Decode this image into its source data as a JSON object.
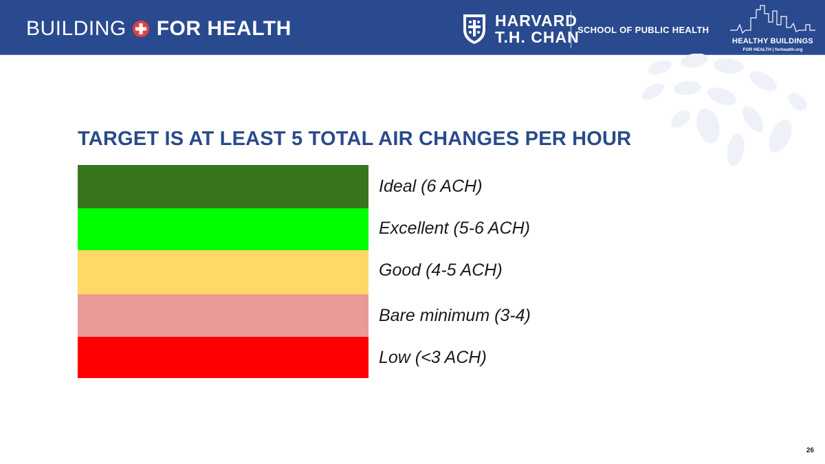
{
  "header": {
    "brand_light": "BUILDING",
    "brand_bold": "FOR HEALTH",
    "harvard_line1": "HARVARD",
    "harvard_line2": "T.H. CHAN",
    "school": "SCHOOL OF PUBLIC HEALTH",
    "hb_title": "HEALTHY BUILDINGS",
    "hb_sub": "FOR HEALTH | forhealth.org",
    "bar_color": "#2a4a8f"
  },
  "slide": {
    "title": "TARGET IS AT LEAST 5 TOTAL AIR CHANGES PER HOUR",
    "page_number": "26"
  },
  "scale": [
    {
      "label": "Ideal (6 ACH)",
      "color": "#38761d"
    },
    {
      "label": "Excellent (5-6 ACH)",
      "color": "#00ff00"
    },
    {
      "label": "Good (4-5 ACH)",
      "color": "#ffd966"
    },
    {
      "label": "Bare minimum (3-4)",
      "color": "#ea9999"
    },
    {
      "label": "Low (<3 ACH)",
      "color": "#ff0000"
    }
  ]
}
